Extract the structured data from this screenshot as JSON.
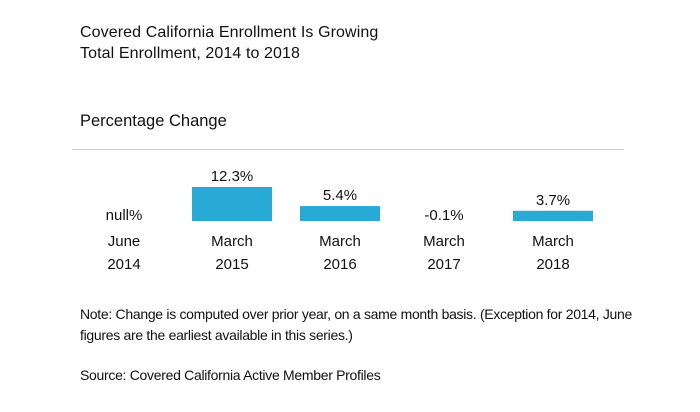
{
  "header": {
    "title": "Covered California Enrollment Is Growing",
    "subtitle": "Total Enrollment, 2014 to 2018"
  },
  "section_label": "Percentage Change",
  "footer": {
    "note": "Note: Change is computed over prior year, on a same month basis. (Exception for 2014, June figures are the earliest available in this series.)",
    "source": "Source: Covered California Active Member Profiles"
  },
  "chart_data": {
    "type": "bar",
    "title": "Percentage Change",
    "categories": [
      {
        "month": "June",
        "year": "2014"
      },
      {
        "month": "March",
        "year": "2015"
      },
      {
        "month": "March",
        "year": "2016"
      },
      {
        "month": "March",
        "year": "2017"
      },
      {
        "month": "March",
        "year": "2018"
      }
    ],
    "values": [
      null,
      12.3,
      5.4,
      -0.1,
      3.7
    ],
    "data_labels": [
      "null%",
      "12.3%",
      "5.4%",
      "-0.1%",
      "3.7%"
    ],
    "units": "%",
    "bar_color": "#29a9d6",
    "grid": false,
    "legend": "none"
  }
}
